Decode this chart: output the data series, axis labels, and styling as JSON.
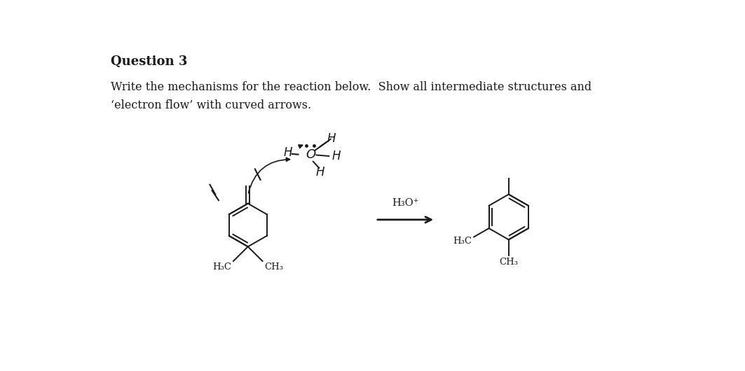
{
  "title": "Question 3",
  "instruction_line1": "Write the mechanisms for the reaction below.  Show all intermediate structures and",
  "instruction_line2": "‘electron flow’ with curved arrows.",
  "bg_color": "#ffffff",
  "text_color": "#1a1a1a",
  "font_size_title": 13,
  "font_size_body": 11.5,
  "fig_width": 10.63,
  "fig_height": 5.3
}
